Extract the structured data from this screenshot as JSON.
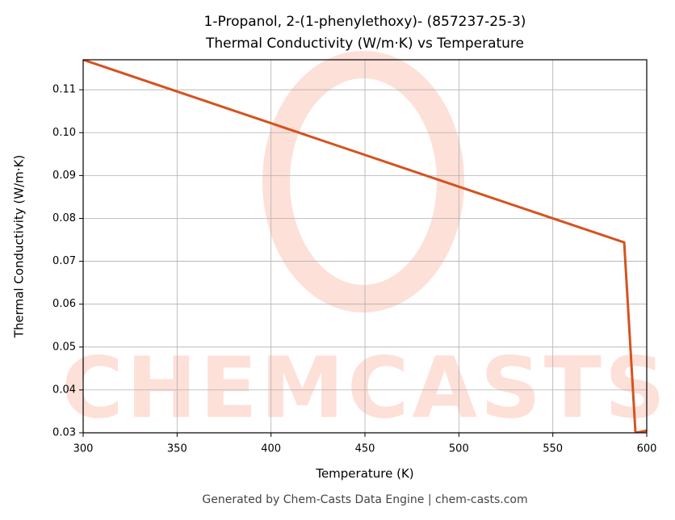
{
  "chart_data": {
    "type": "line",
    "title": "1-Propanol, 2-(1-phenylethoxy)- (857237-25-3)",
    "subtitle": "Thermal Conductivity (W/m·K) vs Temperature",
    "x_label": "Temperature (K)",
    "y_label": "Thermal Conductivity (W/m·K)",
    "footer": "Generated by Chem-Casts Data Engine | chem-casts.com",
    "watermark": "CHEMCASTS",
    "x": [
      300,
      350,
      400,
      450,
      500,
      550,
      588,
      594,
      600
    ],
    "series": [
      {
        "name": "Thermal Conductivity",
        "color": "#d4531f",
        "values": [
          0.117,
          0.1096,
          0.1022,
          0.0948,
          0.0874,
          0.08,
          0.0744,
          0.03,
          0.0305
        ]
      }
    ],
    "xlim": [
      300,
      600
    ],
    "xticks": [
      300,
      350,
      400,
      450,
      500,
      550,
      600
    ],
    "ylim": [
      0.03,
      0.117
    ],
    "yticks": [
      0.03,
      0.04,
      0.05,
      0.06,
      0.07,
      0.08,
      0.09,
      {
        "value": 0.1,
        "label": "0.10"
      },
      0.11
    ],
    "grid": true
  }
}
